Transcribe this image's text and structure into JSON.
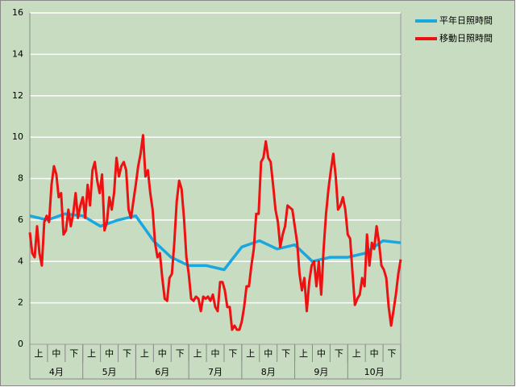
{
  "chart_data": {
    "type": "line",
    "x_labels": {
      "dekads": [
        "上",
        "中",
        "下",
        "上",
        "中",
        "下",
        "上",
        "中",
        "下",
        "上",
        "中",
        "下",
        "上",
        "中",
        "下",
        "上",
        "中",
        "下",
        "上",
        "中",
        "下"
      ],
      "months": [
        "4月",
        "5月",
        "6月",
        "7月",
        "8月",
        "9月",
        "10月"
      ]
    },
    "ylim": [
      0,
      16
    ],
    "yticks": [
      0,
      2,
      4,
      6,
      8,
      10,
      12,
      14,
      16
    ],
    "grid": true,
    "legend": "top-right",
    "series": [
      {
        "name": "平年日照時間",
        "color": "#1aa7e0",
        "values": [
          6.2,
          6.0,
          6.3,
          6.2,
          5.7,
          6.0,
          6.2,
          5.0,
          4.2,
          3.8,
          3.8,
          3.6,
          4.7,
          5.0,
          4.6,
          4.8,
          4.0,
          4.2,
          4.2,
          4.4,
          5.0,
          4.9
        ]
      },
      {
        "name": "移動日照時間",
        "color": "#ee1111",
        "values": [
          5.4,
          4.4,
          4.2,
          5.7,
          4.4,
          3.8,
          5.9,
          6.2,
          5.9,
          7.7,
          8.6,
          8.2,
          7.1,
          7.3,
          5.3,
          5.5,
          6.5,
          5.7,
          6.3,
          7.3,
          6.1,
          6.7,
          7.1,
          6.1,
          7.7,
          6.7,
          8.4,
          8.8,
          7.9,
          7.3,
          8.2,
          5.5,
          5.9,
          7.1,
          6.5,
          7.3,
          9.0,
          8.1,
          8.6,
          8.8,
          8.4,
          6.5,
          6.1,
          6.9,
          7.7,
          8.6,
          9.2,
          10.1,
          8.1,
          8.4,
          7.3,
          6.5,
          4.9,
          4.2,
          4.4,
          3.2,
          2.2,
          2.1,
          3.2,
          3.4,
          4.9,
          6.9,
          7.9,
          7.5,
          6.1,
          4.2,
          3.4,
          2.2,
          2.1,
          2.3,
          2.2,
          1.6,
          2.3,
          2.2,
          2.3,
          2.1,
          2.4,
          1.8,
          1.6,
          3.0,
          3.0,
          2.6,
          1.8,
          1.8,
          0.7,
          0.9,
          0.7,
          0.7,
          1.1,
          1.8,
          2.8,
          2.8,
          3.8,
          4.6,
          6.3,
          6.3,
          8.8,
          9.0,
          9.8,
          9.0,
          8.8,
          7.7,
          6.5,
          5.9,
          4.7,
          5.3,
          5.7,
          6.7,
          6.6,
          6.5,
          5.7,
          4.9,
          3.4,
          2.6,
          3.2,
          1.6,
          3.0,
          3.8,
          4.0,
          2.8,
          4.0,
          2.4,
          4.6,
          6.3,
          7.5,
          8.4,
          9.2,
          8.1,
          6.5,
          6.7,
          7.1,
          6.5,
          5.3,
          5.1,
          3.4,
          1.9,
          2.2,
          2.4,
          3.2,
          2.8,
          5.3,
          3.8,
          4.9,
          4.6,
          5.7,
          4.9,
          3.8,
          3.6,
          3.2,
          1.8,
          0.9,
          1.6,
          2.4,
          3.4,
          4.1
        ]
      }
    ]
  }
}
